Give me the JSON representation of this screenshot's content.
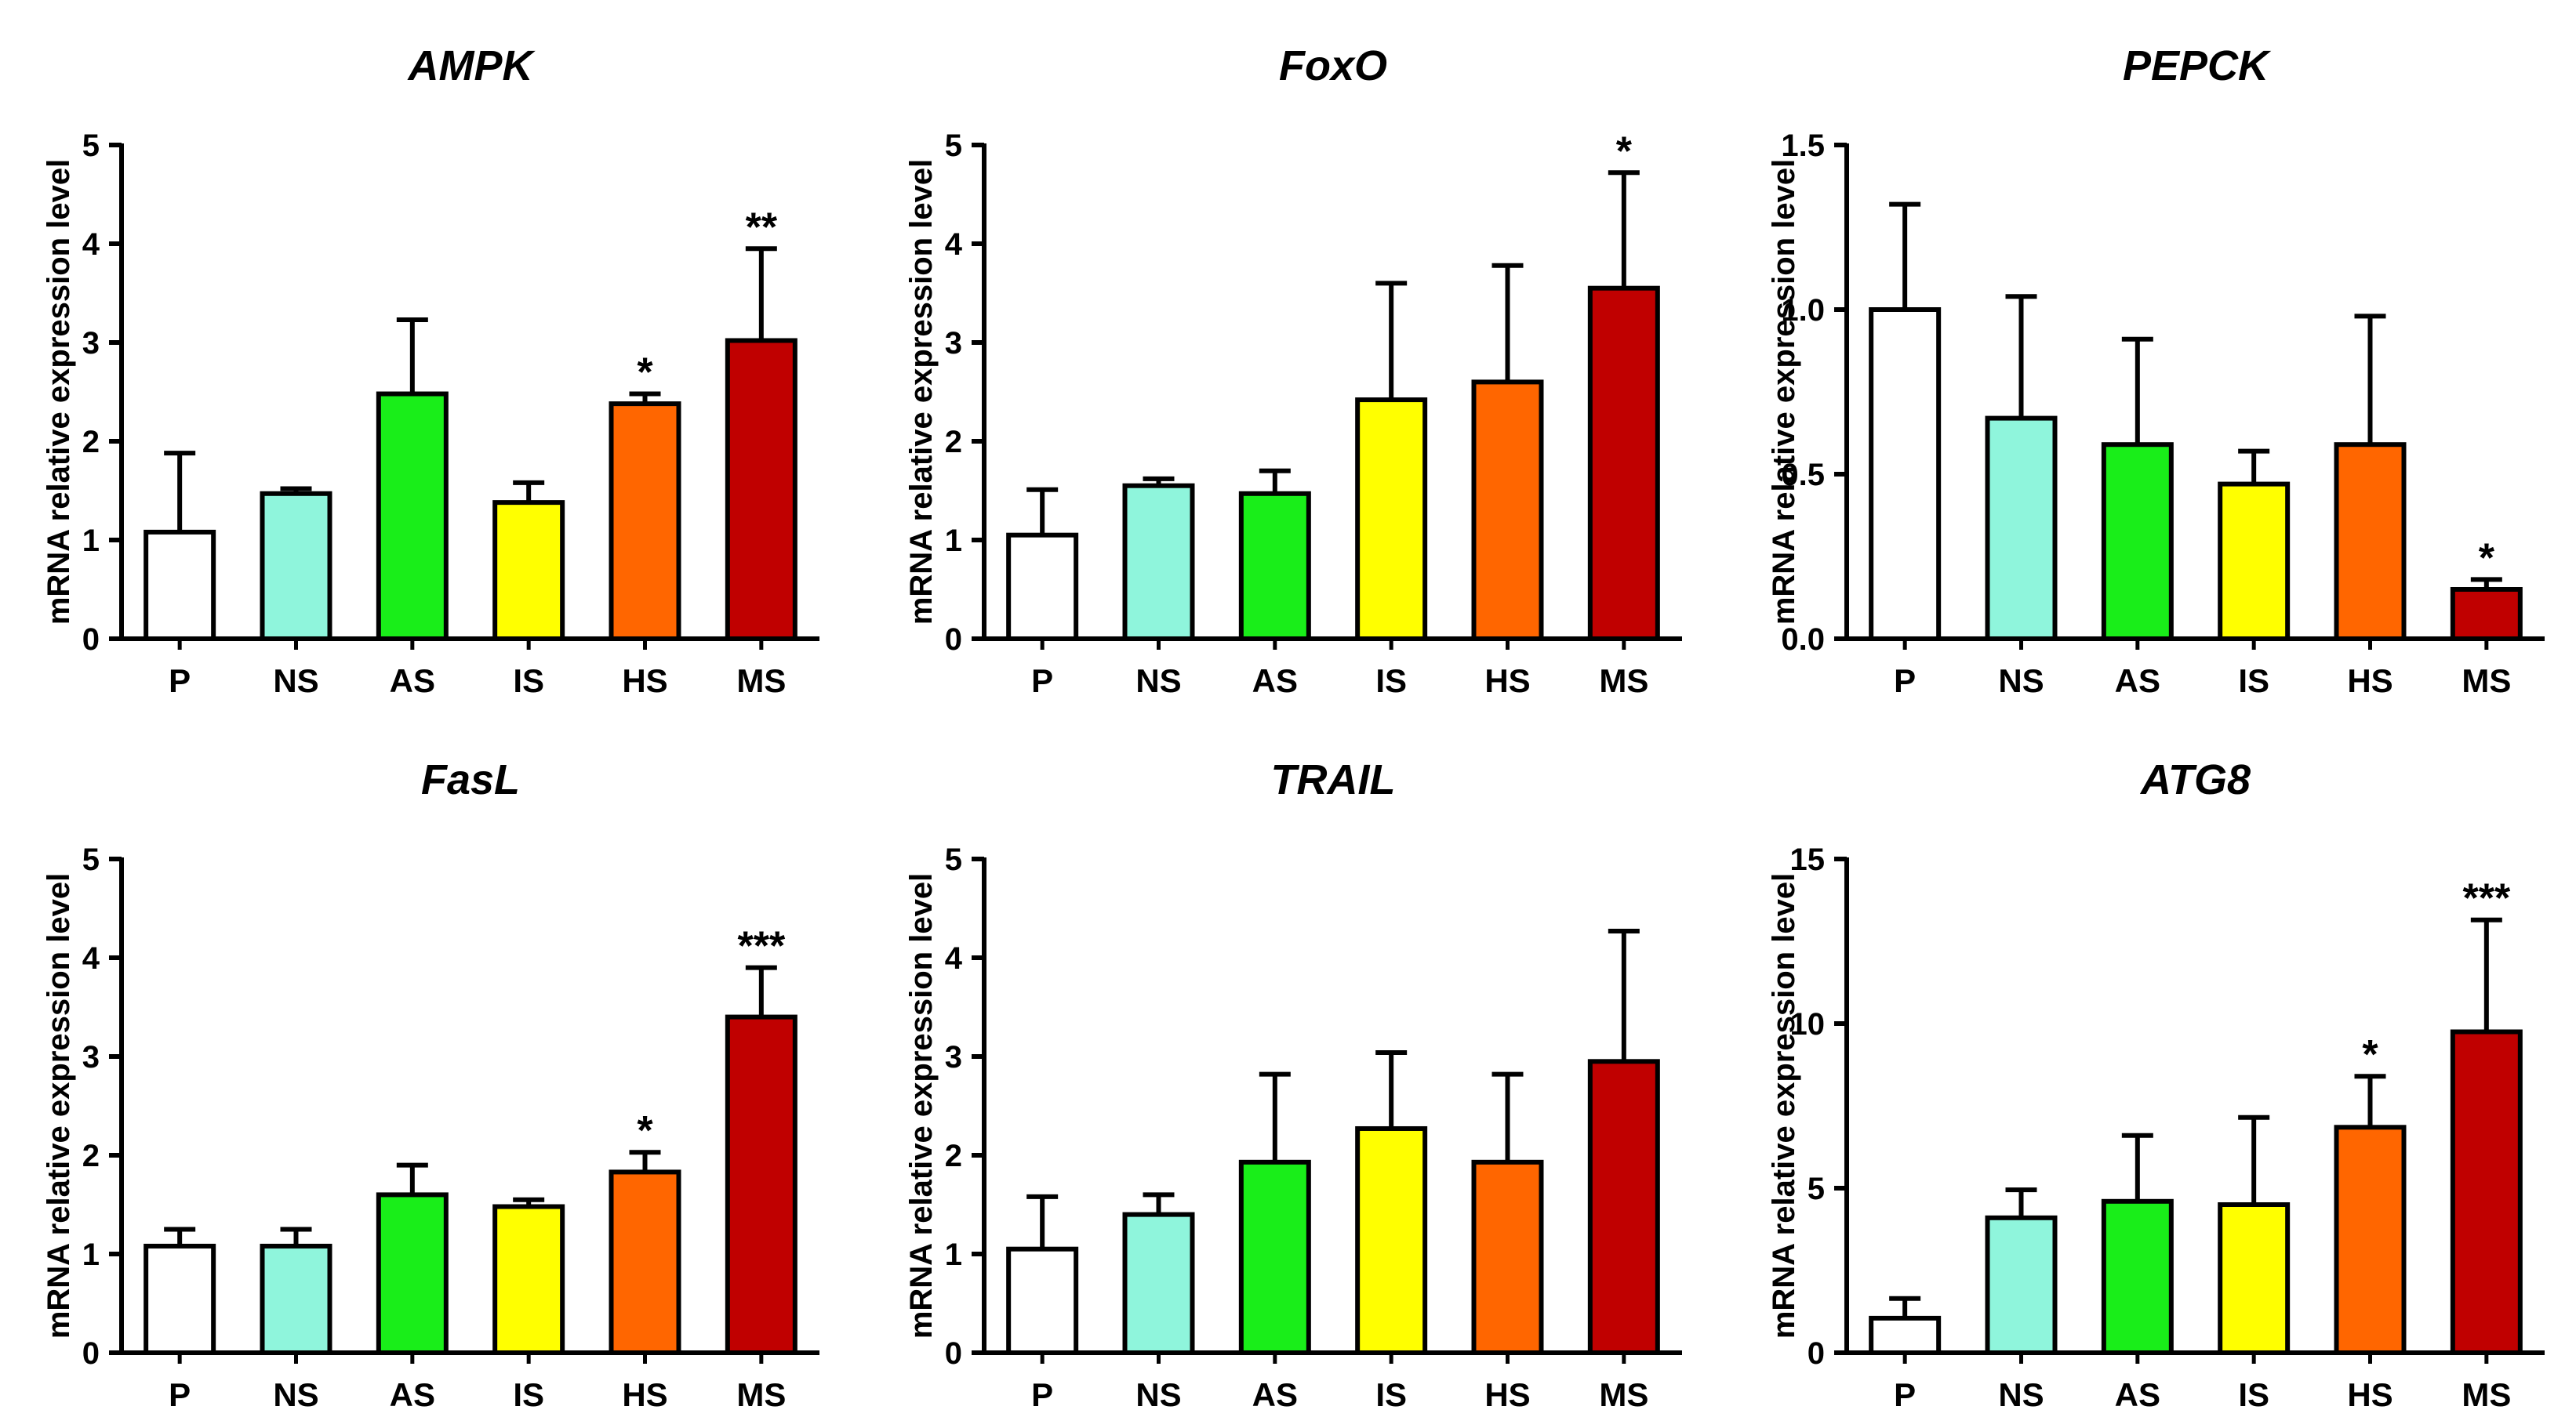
{
  "colors": {
    "P": "#ffffff",
    "NS": "#8ff5dc",
    "AS": "#19ee19",
    "IS": "#ffff00",
    "HS": "#ff6600",
    "MS": "#c00000",
    "stroke": "#000000"
  },
  "chart_data": [
    {
      "type": "bar",
      "title": "AMPK",
      "ylabel": "mRNA relative expression level",
      "categories": [
        "P",
        "NS",
        "AS",
        "IS",
        "HS",
        "MS"
      ],
      "values": [
        1.08,
        1.47,
        2.48,
        1.38,
        2.38,
        3.02
      ],
      "errors": [
        0.8,
        0.05,
        0.75,
        0.2,
        0.1,
        0.93
      ],
      "significance": [
        "",
        "",
        "",
        "",
        "*",
        "**"
      ],
      "ylim": [
        0,
        5
      ],
      "yticks": [
        "0",
        "1",
        "2",
        "3",
        "4",
        "5"
      ],
      "ytick_values": [
        0,
        1,
        2,
        3,
        4,
        5
      ]
    },
    {
      "type": "bar",
      "title": "FoxO",
      "ylabel": "mRNA relative expression level",
      "categories": [
        "P",
        "NS",
        "AS",
        "IS",
        "HS",
        "MS"
      ],
      "values": [
        1.05,
        1.55,
        1.47,
        2.42,
        2.6,
        3.55
      ],
      "errors": [
        0.46,
        0.07,
        0.23,
        1.18,
        1.18,
        1.17
      ],
      "significance": [
        "",
        "",
        "",
        "",
        "",
        "*"
      ],
      "ylim": [
        0,
        5
      ],
      "yticks": [
        "0",
        "1",
        "2",
        "3",
        "4",
        "5"
      ],
      "ytick_values": [
        0,
        1,
        2,
        3,
        4,
        5
      ]
    },
    {
      "type": "bar",
      "title": "PEPCK",
      "ylabel": "mRNA relative expression level",
      "categories": [
        "P",
        "NS",
        "AS",
        "IS",
        "HS",
        "MS"
      ],
      "values": [
        1.0,
        0.67,
        0.59,
        0.47,
        0.59,
        0.15
      ],
      "errors": [
        0.32,
        0.37,
        0.32,
        0.1,
        0.39,
        0.03
      ],
      "significance": [
        "",
        "",
        "",
        "",
        "",
        "*"
      ],
      "ylim": [
        0,
        1.5
      ],
      "yticks": [
        "0.0",
        "0.5",
        "1.0",
        "1.5"
      ],
      "ytick_values": [
        0,
        0.5,
        1.0,
        1.5
      ]
    },
    {
      "type": "bar",
      "title": "FasL",
      "ylabel": "mRNA relative expression level",
      "categories": [
        "P",
        "NS",
        "AS",
        "IS",
        "HS",
        "MS"
      ],
      "values": [
        1.08,
        1.08,
        1.6,
        1.48,
        1.83,
        3.4
      ],
      "errors": [
        0.17,
        0.17,
        0.3,
        0.07,
        0.2,
        0.5
      ],
      "significance": [
        "",
        "",
        "",
        "",
        "*",
        "***"
      ],
      "ylim": [
        0,
        5
      ],
      "yticks": [
        "0",
        "1",
        "2",
        "3",
        "4",
        "5"
      ],
      "ytick_values": [
        0,
        1,
        2,
        3,
        4,
        5
      ]
    },
    {
      "type": "bar",
      "title": "TRAIL",
      "ylabel": "mRNA relative expression level",
      "categories": [
        "P",
        "NS",
        "AS",
        "IS",
        "HS",
        "MS"
      ],
      "values": [
        1.05,
        1.4,
        1.93,
        2.27,
        1.93,
        2.95
      ],
      "errors": [
        0.53,
        0.2,
        0.89,
        0.77,
        0.89,
        1.32
      ],
      "significance": [
        "",
        "",
        "",
        "",
        "",
        ""
      ],
      "ylim": [
        0,
        5
      ],
      "yticks": [
        "0",
        "1",
        "2",
        "3",
        "4",
        "5"
      ],
      "ytick_values": [
        0,
        1,
        2,
        3,
        4,
        5
      ]
    },
    {
      "type": "bar",
      "title": "ATG8",
      "ylabel": "mRNA relative expression level",
      "categories": [
        "P",
        "NS",
        "AS",
        "IS",
        "HS",
        "MS"
      ],
      "values": [
        1.05,
        4.1,
        4.6,
        4.5,
        6.85,
        9.75
      ],
      "errors": [
        0.6,
        0.85,
        2.0,
        2.65,
        1.55,
        3.4
      ],
      "significance": [
        "",
        "",
        "",
        "",
        "*",
        "***"
      ],
      "ylim": [
        0,
        15
      ],
      "yticks": [
        "0",
        "5",
        "10",
        "15"
      ],
      "ytick_values": [
        0,
        5,
        10,
        15
      ]
    }
  ]
}
